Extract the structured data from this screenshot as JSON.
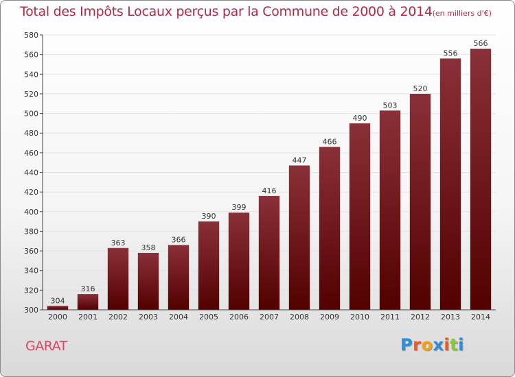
{
  "header": {
    "title": "Total des Impôts Locaux perçus par la Commune de 2000 à 2014",
    "unit": "(en milliers d'€)"
  },
  "footer": {
    "commune": "GARAT",
    "logo_letters": [
      {
        "char": "P",
        "color": "#2b8fd6"
      },
      {
        "char": "r",
        "color": "#e85a2a"
      },
      {
        "char": "o",
        "color": "#f0a21a"
      },
      {
        "char": "x",
        "color": "#2b8fd6"
      },
      {
        "char": "i",
        "color": "#e85a2a"
      },
      {
        "char": "t",
        "color": "#8cc63f"
      },
      {
        "char": "i",
        "color": "#2b8fd6"
      }
    ]
  },
  "colors": {
    "bar_top": "#8a3038",
    "bar_bottom": "#520000",
    "grid": "#e4e4e4",
    "axis": "#444444"
  },
  "chart_data": {
    "type": "bar",
    "title": "Total des Impôts Locaux perçus par la Commune de 2000 à 2014",
    "unit": "(en milliers d'€)",
    "categories": [
      "2000",
      "2001",
      "2002",
      "2003",
      "2004",
      "2005",
      "2006",
      "2007",
      "2008",
      "2009",
      "2010",
      "2011",
      "2012",
      "2013",
      "2014"
    ],
    "values": [
      304,
      316,
      363,
      358,
      366,
      390,
      399,
      416,
      447,
      466,
      490,
      503,
      520,
      556,
      566
    ],
    "ylim": [
      300,
      580
    ],
    "yticks": [
      300,
      320,
      340,
      360,
      380,
      400,
      420,
      440,
      460,
      480,
      500,
      520,
      540,
      560,
      580
    ],
    "grid": true,
    "data_labels": true
  }
}
